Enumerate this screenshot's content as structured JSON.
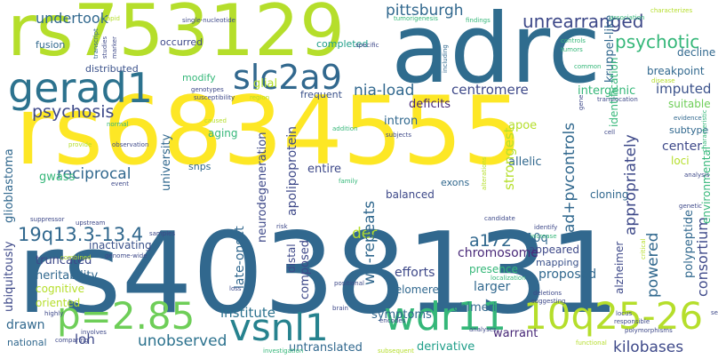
{
  "words": [
    {
      "text": "rs4038131",
      "color": "#31688e"
    },
    {
      "text": "rs6834555",
      "color": "#fde725"
    },
    {
      "text": "adrc",
      "color": "#2f6c8e"
    },
    {
      "text": "rs753129",
      "color": "#b5de2b"
    },
    {
      "text": "gerad1",
      "color": "#2c728e"
    },
    {
      "text": "slc2a9",
      "color": "#31688e"
    },
    {
      "text": "p=2.85",
      "color": "#6ece58"
    },
    {
      "text": "vsnl1",
      "color": "#26828e"
    },
    {
      "text": "wdr11",
      "color": "#35b779"
    },
    {
      "text": "10q25-26",
      "color": "#b5de2b"
    },
    {
      "text": "19q13.3-13.4",
      "color": "#31688e"
    },
    {
      "text": "psychosis",
      "color": "#3e4989"
    },
    {
      "text": "pittsburgh",
      "color": "#31688e"
    },
    {
      "text": "unrearranged",
      "color": "#3e4989"
    },
    {
      "text": "psychotic",
      "color": "#35b779"
    },
    {
      "text": "undertook",
      "color": "#31688e"
    },
    {
      "text": "nia-load",
      "color": "#31688e"
    },
    {
      "text": "centromere",
      "color": "#3e4989"
    },
    {
      "text": "imputed",
      "color": "#3b528b"
    },
    {
      "text": "breakpoint",
      "color": "#31688e"
    },
    {
      "text": "suitable",
      "color": "#6ece58"
    },
    {
      "text": "decline",
      "color": "#31688e"
    },
    {
      "text": "fusion",
      "color": "#31688e"
    },
    {
      "text": "occurred",
      "color": "#3e4989"
    },
    {
      "text": "distributed",
      "color": "#3b528b"
    },
    {
      "text": "completed",
      "color": "#1f9e89"
    },
    {
      "text": "glial",
      "color": "#b5de2b"
    },
    {
      "text": "modify",
      "color": "#35b779"
    },
    {
      "text": "frequent",
      "color": "#3b528b"
    },
    {
      "text": "deficits",
      "color": "#482878"
    },
    {
      "text": "intron",
      "color": "#31688e"
    },
    {
      "text": "intergenic",
      "color": "#35b779"
    },
    {
      "text": "institute",
      "color": "#2c728e"
    },
    {
      "text": "symptoms",
      "color": "#31688e"
    },
    {
      "text": "unobserved",
      "color": "#2c728e"
    },
    {
      "text": "untranslated",
      "color": "#31688e"
    },
    {
      "text": "derivative",
      "color": "#1f9e89"
    },
    {
      "text": "kilobases",
      "color": "#3e4989"
    },
    {
      "text": "chimeric",
      "color": "#31688e"
    },
    {
      "text": "warrant",
      "color": "#482878"
    },
    {
      "text": "national",
      "color": "#31688e"
    },
    {
      "text": "loh",
      "color": "#3e4989"
    },
    {
      "text": "drawn",
      "color": "#31688e"
    },
    {
      "text": "oriented",
      "color": "#b5de2b"
    },
    {
      "text": "heritability",
      "color": "#31688e"
    },
    {
      "text": "truncated",
      "color": "#3e4989"
    },
    {
      "text": "cognitive",
      "color": "#b5de2b"
    },
    {
      "text": "inactivating",
      "color": "#3b528b"
    },
    {
      "text": "reciprocal",
      "color": "#31688e"
    },
    {
      "text": "gwass",
      "color": "#35b779"
    },
    {
      "text": "snps",
      "color": "#31688e"
    },
    {
      "text": "aging",
      "color": "#35b779"
    },
    {
      "text": "entire",
      "color": "#3e4989"
    },
    {
      "text": "balanced",
      "color": "#3e4989"
    },
    {
      "text": "exons",
      "color": "#31688e"
    },
    {
      "text": "apoe",
      "color": "#b5de2b"
    },
    {
      "text": "allelic",
      "color": "#31688e"
    },
    {
      "text": "cloning",
      "color": "#31688e"
    },
    {
      "text": "center",
      "color": "#3e4989"
    },
    {
      "text": "subtype",
      "color": "#31688e"
    },
    {
      "text": "loci",
      "color": "#b5de2b"
    },
    {
      "text": "a172",
      "color": "#31688e"
    },
    {
      "text": "10q",
      "color": "#31688e"
    },
    {
      "text": "appeared",
      "color": "#3e4989"
    },
    {
      "text": "mapping",
      "color": "#3b528b"
    },
    {
      "text": "proposed",
      "color": "#31688e"
    },
    {
      "text": "chromosome",
      "color": "#482878"
    },
    {
      "text": "presence",
      "color": "#35b779"
    },
    {
      "text": "larger",
      "color": "#31688e"
    },
    {
      "text": "efforts",
      "color": "#3e4989"
    },
    {
      "text": "der",
      "color": "#b5de2b"
    },
    {
      "text": "telomere",
      "color": "#31688e"
    },
    {
      "text": "ad+pvcontrols",
      "color": "#31688e"
    },
    {
      "text": "appropriately",
      "color": "#3e4989"
    },
    {
      "text": "powered",
      "color": "#31688e"
    },
    {
      "text": "consortium",
      "color": "#3e4989"
    },
    {
      "text": "kruppel-like",
      "color": "#31688e"
    },
    {
      "text": "apolipoprotein",
      "color": "#3e4989"
    },
    {
      "text": "neurodegeneration",
      "color": "#3e4989"
    },
    {
      "text": "university",
      "color": "#31688e"
    },
    {
      "text": "glioblastoma",
      "color": "#31688e"
    },
    {
      "text": "ubiquitously",
      "color": "#3e4989"
    },
    {
      "text": "late-onset",
      "color": "#31688e"
    },
    {
      "text": "composed",
      "color": "#3e4989"
    },
    {
      "text": "wd-repeats",
      "color": "#31688e"
    },
    {
      "text": "strongest",
      "color": "#b5de2b"
    },
    {
      "text": "alzheimer",
      "color": "#3e4989"
    },
    {
      "text": "polypeptide",
      "color": "#31688e"
    },
    {
      "text": "environmental",
      "color": "#35b779"
    },
    {
      "text": "distal",
      "color": "#3e4989"
    },
    {
      "text": "identification",
      "color": "#35b779"
    },
    {
      "text": "single-nucleotide",
      "color": "#3e4989"
    },
    {
      "text": "rapid",
      "color": "#b5de2b"
    },
    {
      "text": "transcript",
      "color": "#31688e"
    },
    {
      "text": "studies",
      "color": "#3e4989"
    },
    {
      "text": "marker",
      "color": "#3e4989"
    },
    {
      "text": "tumorigenesis",
      "color": "#35b779"
    },
    {
      "text": "findings",
      "color": "#35b779"
    },
    {
      "text": "association",
      "color": "#35b779"
    },
    {
      "text": "characterizes",
      "color": "#b5de2b"
    },
    {
      "text": "including",
      "color": "#31688e"
    },
    {
      "text": "specific",
      "color": "#3e4989"
    },
    {
      "text": "controls",
      "color": "#35b779"
    },
    {
      "text": "tumors",
      "color": "#35b779"
    },
    {
      "text": "common",
      "color": "#35b779"
    },
    {
      "text": "genotypes",
      "color": "#3e4989"
    },
    {
      "text": "susceptibility",
      "color": "#3e4989"
    },
    {
      "text": "region",
      "color": "#b5de2b"
    },
    {
      "text": "disease",
      "color": "#b5de2b"
    },
    {
      "text": "translocation",
      "color": "#3e4989"
    },
    {
      "text": "normal",
      "color": "#35b779"
    },
    {
      "text": "caused",
      "color": "#b5de2b"
    },
    {
      "text": "addition",
      "color": "#35b779"
    },
    {
      "text": "subjects",
      "color": "#3e4989"
    },
    {
      "text": "evidence",
      "color": "#31688e"
    },
    {
      "text": "characteristic",
      "color": "#35b779"
    },
    {
      "text": "provide",
      "color": "#b5de2b"
    },
    {
      "text": "observation",
      "color": "#3e4989"
    },
    {
      "text": "cell",
      "color": "#3e4989"
    },
    {
      "text": "analysis",
      "color": "#3e4989"
    },
    {
      "text": "event",
      "color": "#3e4989"
    },
    {
      "text": "family",
      "color": "#35b779"
    },
    {
      "text": "alterations",
      "color": "#b5de2b"
    },
    {
      "text": "suppressor",
      "color": "#3e4989"
    },
    {
      "text": "risk",
      "color": "#3e4989"
    },
    {
      "text": "candidate",
      "color": "#3e4989"
    },
    {
      "text": "increase",
      "color": "#35b779"
    },
    {
      "text": "genetic",
      "color": "#3e4989"
    },
    {
      "text": "upstream",
      "color": "#3e4989"
    },
    {
      "text": "samples",
      "color": "#3e4989"
    },
    {
      "text": "identify",
      "color": "#3e4989"
    },
    {
      "text": "critical",
      "color": "#b5de2b"
    },
    {
      "text": "combined",
      "color": "#b5de2b"
    },
    {
      "text": "genome-wide",
      "color": "#3e4989"
    },
    {
      "text": "positional",
      "color": "#3e4989"
    },
    {
      "text": "localization",
      "color": "#35b779"
    },
    {
      "text": "loss",
      "color": "#3e4989"
    },
    {
      "text": "deletions",
      "color": "#3e4989"
    },
    {
      "text": "suggesting",
      "color": "#3e4989"
    },
    {
      "text": "brain",
      "color": "#3e4989"
    },
    {
      "text": "highly",
      "color": "#3e4989"
    },
    {
      "text": "involves",
      "color": "#3e4989"
    },
    {
      "text": "analyses",
      "color": "#3e4989"
    },
    {
      "text": "encodes",
      "color": "#3e4989"
    },
    {
      "text": "locus",
      "color": "#3e4989"
    },
    {
      "text": "responsible",
      "color": "#3e4989"
    },
    {
      "text": "set",
      "color": "#3e4989"
    },
    {
      "text": "comparing",
      "color": "#3e4989"
    },
    {
      "text": "investigation",
      "color": "#35b779"
    },
    {
      "text": "subsequent",
      "color": "#b5de2b"
    },
    {
      "text": "functional",
      "color": "#b5de2b"
    },
    {
      "text": "polymorphisms",
      "color": "#3e4989"
    },
    {
      "text": "gene",
      "color": "#3e4989"
    }
  ]
}
